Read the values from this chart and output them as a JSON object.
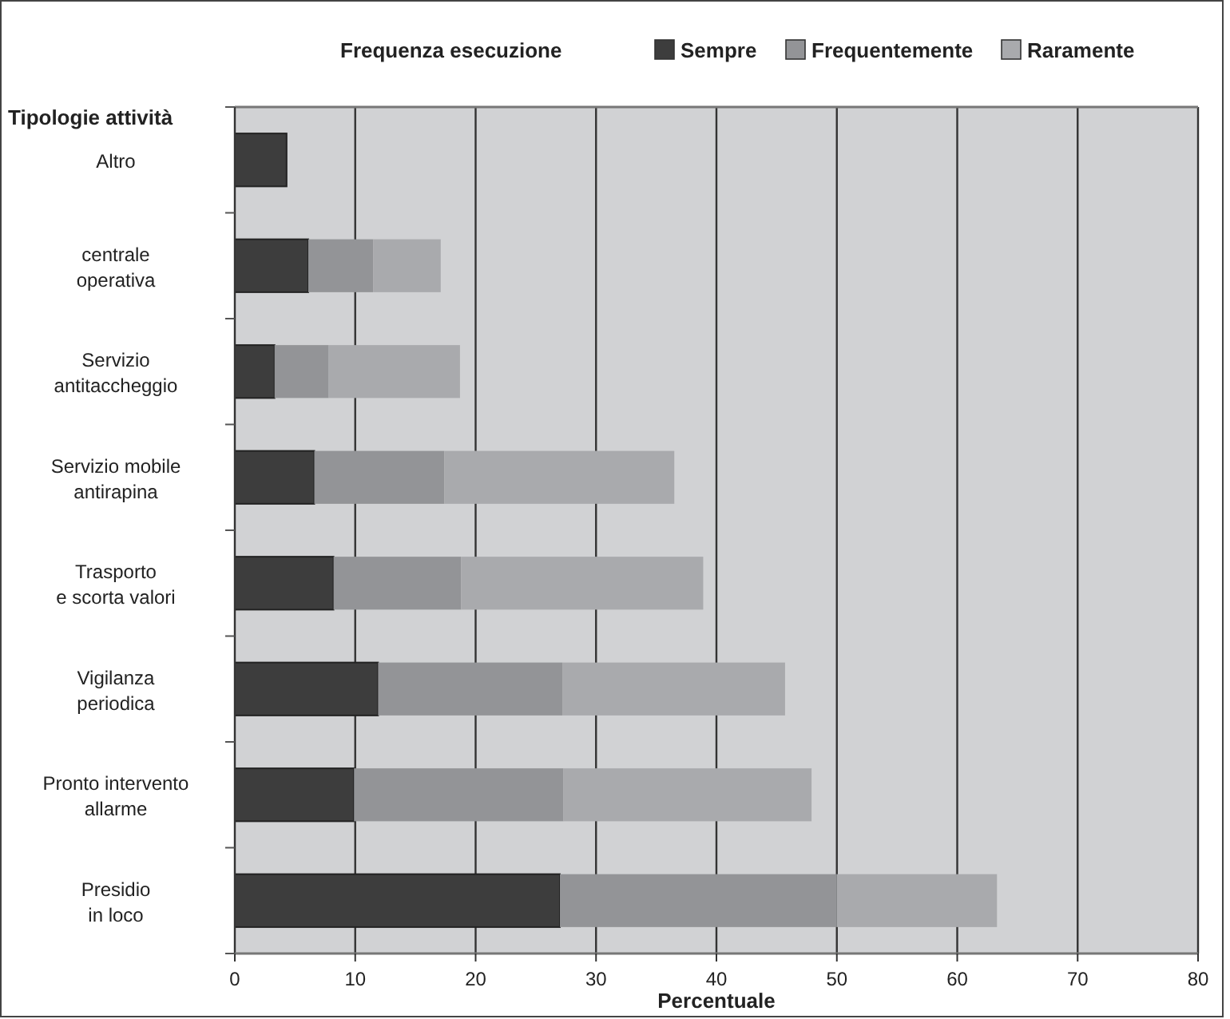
{
  "chart_data": {
    "type": "bar",
    "orientation": "horizontal",
    "stacked": true,
    "xlabel": "Percentuale",
    "ylabel": "Tipologie attività",
    "legend_title": "Frequenza esecuzione",
    "categories": [
      "Altro",
      "centrale\noperativa",
      "Servizio\nantitaccheggio",
      "Servizio mobile\nantirapina",
      "Trasporto\ne scorta valori",
      "Vigilanza\nperiodica",
      "Pronto intervento\nallarme",
      "Presidio\nin loco"
    ],
    "series": [
      {
        "name": "Sempre",
        "color": "#3d3d3d",
        "values": [
          4.3,
          6.1,
          3.3,
          6.6,
          8.2,
          11.9,
          9.9,
          27.0
        ]
      },
      {
        "name": "Frequentemente",
        "color": "#939497",
        "values": [
          null,
          5.4,
          4.5,
          10.8,
          10.6,
          15.3,
          17.4,
          23.0
        ]
      },
      {
        "name": "Raramente",
        "color": "#a9aaad",
        "values": [
          null,
          5.6,
          10.9,
          19.1,
          20.1,
          18.5,
          20.6,
          13.3
        ]
      }
    ],
    "xlim": [
      0,
      80
    ],
    "xticks": [
      0,
      10,
      20,
      30,
      40,
      50,
      60,
      70,
      80
    ],
    "grid": "x",
    "legend": "top"
  }
}
